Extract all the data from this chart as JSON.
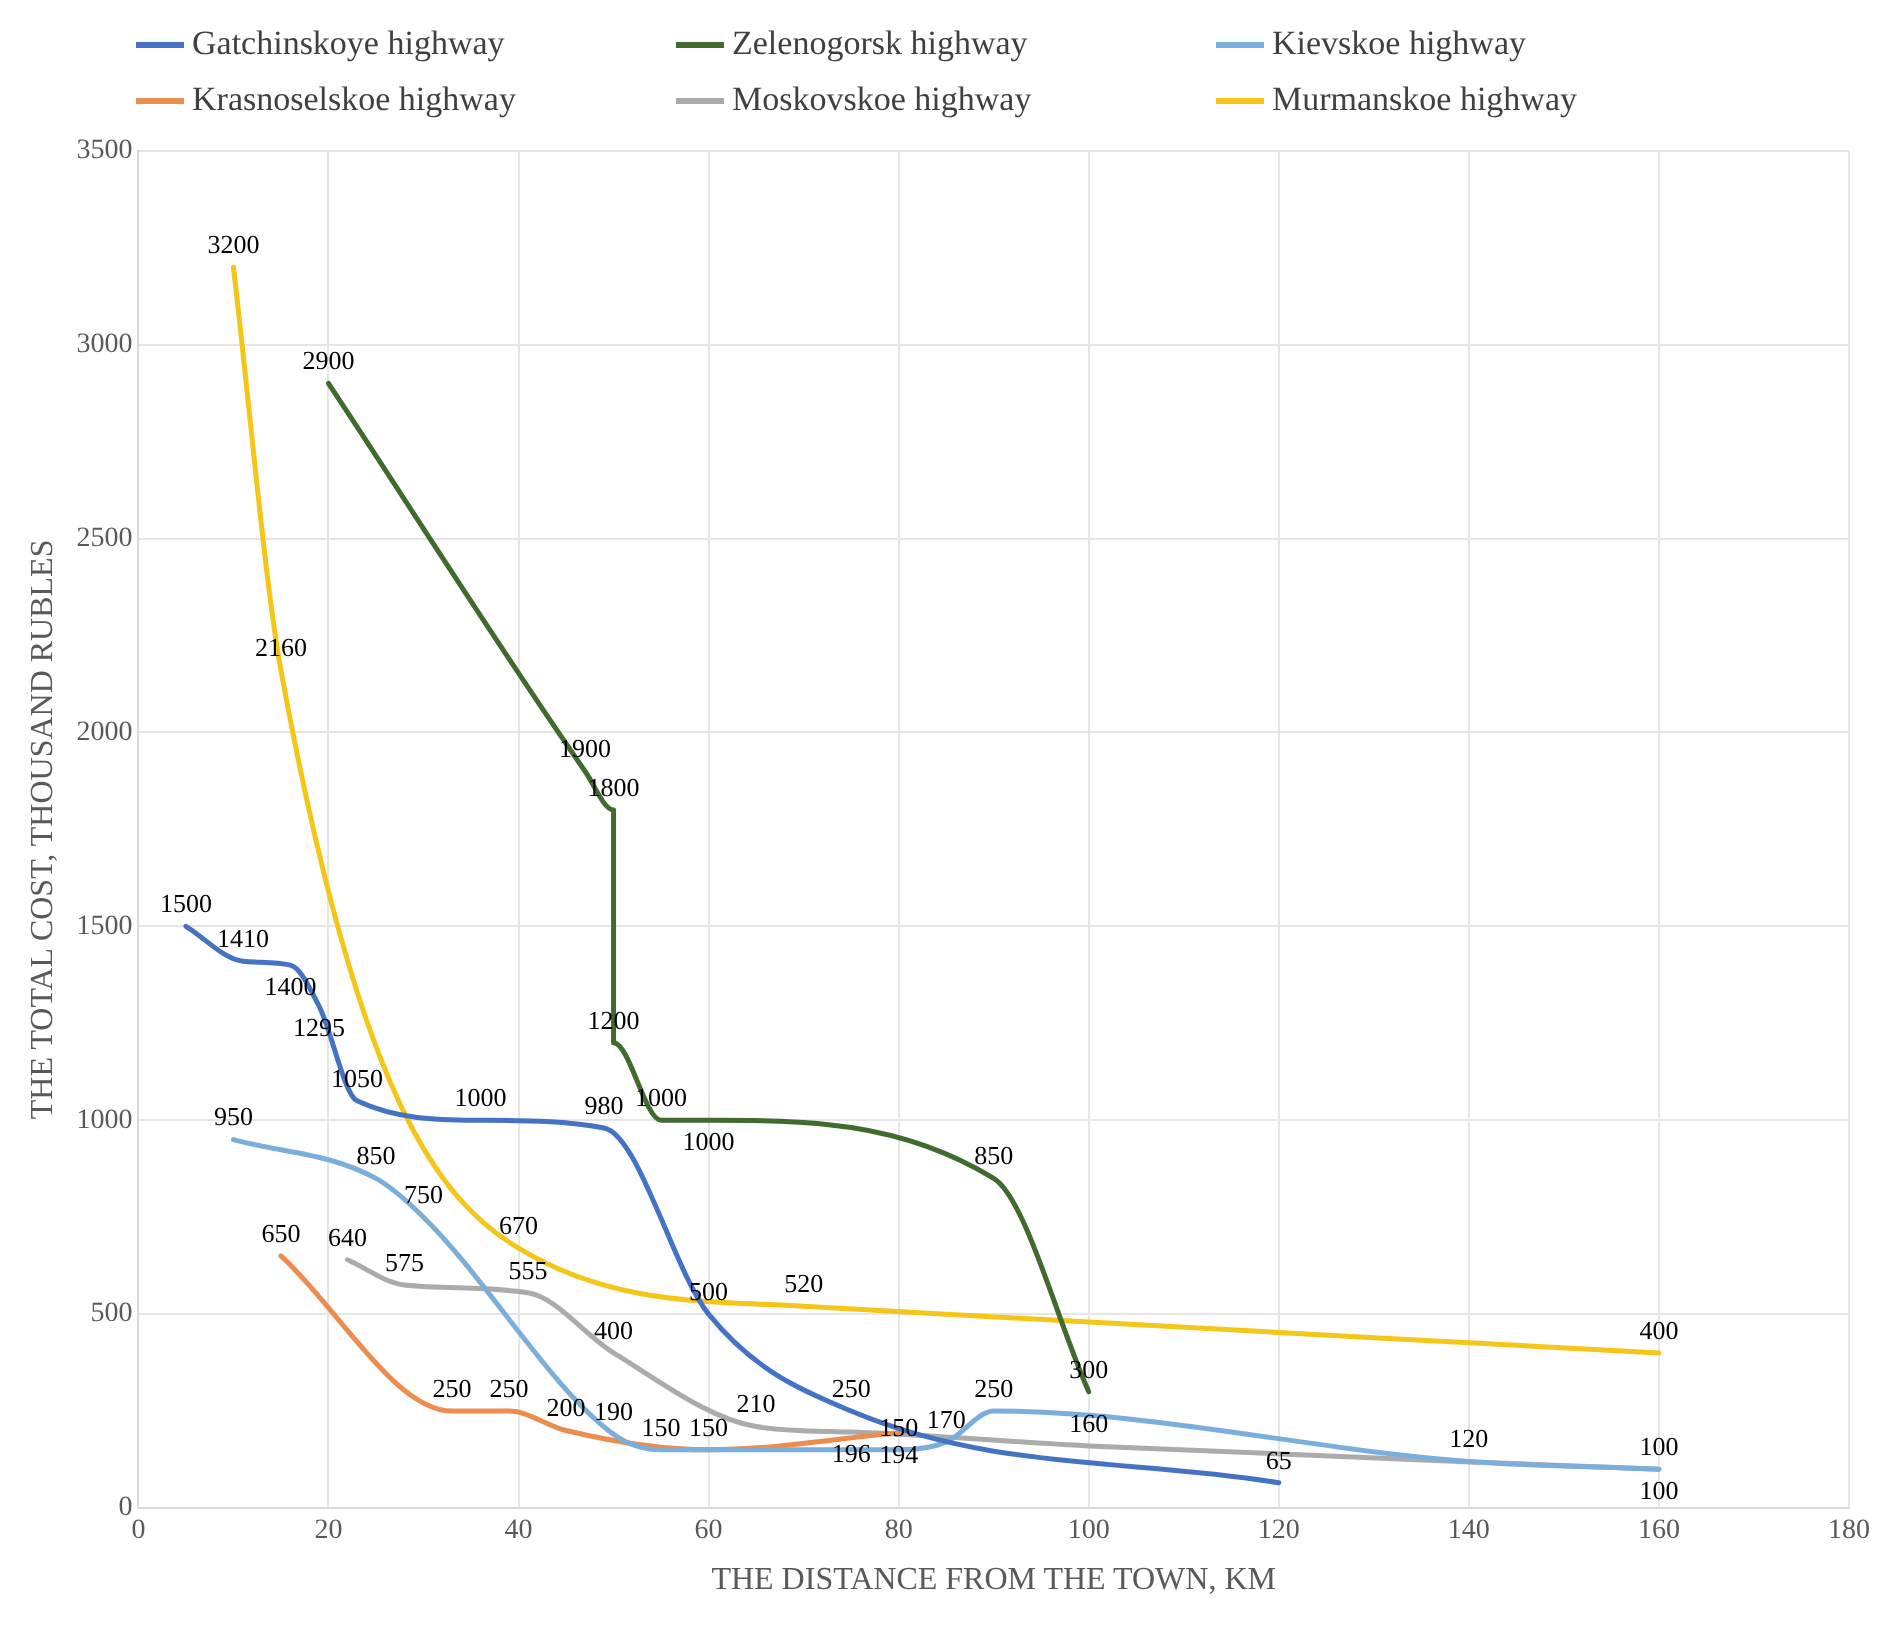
{
  "chart_data": {
    "type": "line",
    "xlabel": "THE DISTANCE FROM THE TOWN, KM",
    "ylabel": "THE TOTAL COST, THOUSAND RUBLES",
    "xlim": [
      0,
      180
    ],
    "xticks": [
      0,
      20,
      40,
      60,
      80,
      100,
      120,
      140,
      160,
      180
    ],
    "ylim": [
      0,
      3500
    ],
    "yticks": [
      0,
      500,
      1000,
      1500,
      2000,
      2500,
      3000,
      3500
    ],
    "grid": true,
    "legend": "top",
    "marker": "none",
    "line_style": "solid",
    "data_labels": true,
    "series": [
      {
        "name": "Gatchinskoye highway",
        "color": "#4472c4",
        "x": [
          5,
          11,
          16,
          19,
          23,
          36,
          49,
          60,
          75,
          120
        ],
        "values": [
          1500,
          1410,
          1400,
          1295,
          1050,
          1000,
          980,
          500,
          250,
          65
        ]
      },
      {
        "name": "Zelenogorsk highway",
        "color": "#3f6b2e",
        "x": [
          20,
          47,
          50,
          50,
          55,
          60,
          90,
          100
        ],
        "values": [
          2900,
          1900,
          1800,
          1200,
          1000,
          1000,
          850,
          300
        ]
      },
      {
        "name": "Kievskoe highway",
        "color": "#7aaedc",
        "x": [
          10,
          25,
          30,
          50,
          55,
          80,
          85,
          90,
          140,
          160
        ],
        "values": [
          950,
          850,
          750,
          190,
          150,
          150,
          170,
          250,
          120,
          100
        ]
      },
      {
        "name": "Krasnoselskoe highway",
        "color": "#ed8c4f",
        "x": [
          15,
          33,
          39,
          45,
          60,
          80
        ],
        "values": [
          650,
          250,
          250,
          200,
          150,
          194
        ]
      },
      {
        "name": "Moskovskoe highway",
        "color": "#ababab",
        "x": [
          22,
          28,
          41,
          50,
          65,
          75,
          100,
          160
        ],
        "values": [
          640,
          575,
          555,
          400,
          210,
          196,
          160,
          100
        ]
      },
      {
        "name": "Murmanskoe highway",
        "color": "#f5c518",
        "x": [
          10,
          15,
          40,
          70,
          160
        ],
        "values": [
          3200,
          2160,
          670,
          520,
          400
        ]
      }
    ]
  }
}
